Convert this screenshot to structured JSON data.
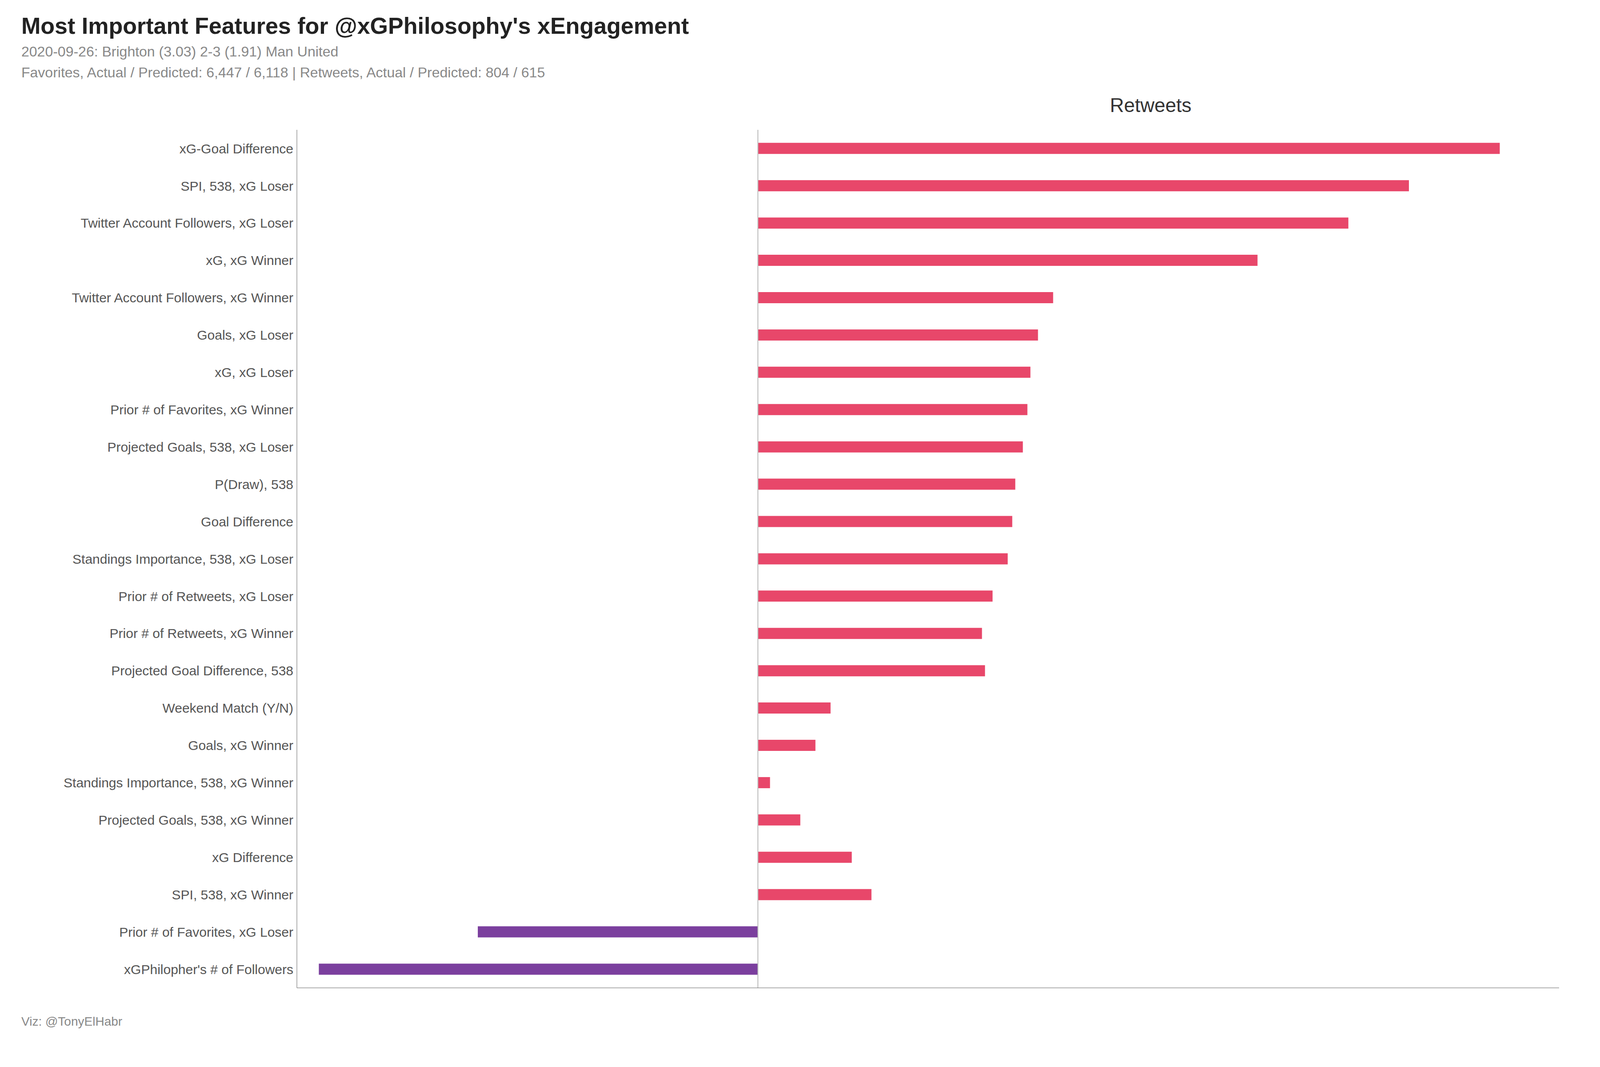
{
  "chart_data": {
    "type": "bar",
    "orientation": "horizontal",
    "title": "Most Important Features for @xGPhilosophy's xEngagement",
    "subtitle": [
      "2020-09-26: Brighton (3.03) 2-3 (1.91) Man United",
      "Favorites, Actual / Predicted: 6,447 / 6,118 | Retweets, Actual / Predicted: 804 / 615"
    ],
    "annotations": [
      "Retweets",
      "Viz: @TonyElHabr"
    ],
    "categories": [
      "xG-Goal Difference",
      "SPI, 538, xG Loser",
      "Twitter Account Followers, xG Loser",
      "xG, xG Winner",
      "Twitter Account Followers, xG Winner",
      "Goals, xG Loser",
      "xG, xG Loser",
      "Prior # of Favorites, xG Winner",
      "Projected Goals, 538, xG Loser",
      "P(Draw), 538",
      "Goal Difference",
      "Standings Importance, 538, xG Loser",
      "Prior # of Retweets, xG Loser",
      "Prior # of Retweets, xG Winner",
      "Projected Goal Difference, 538",
      "Weekend Match (Y/N)",
      "Goals, xG Winner",
      "Standings Importance, 538, xG Winner",
      "Projected Goals, 538, xG Winner",
      "xG Difference",
      "SPI, 538, xG Winner",
      "Prior # of Favorites, xG Loser",
      "xGPhilopher's # of Followers"
    ],
    "values": [
      490,
      430,
      390,
      330,
      195,
      185,
      180,
      178,
      175,
      170,
      168,
      165,
      155,
      148,
      150,
      48,
      38,
      8,
      28,
      62,
      75,
      -185,
      -290
    ],
    "colors": [
      "#E8476A",
      "#E8476A",
      "#E8476A",
      "#E8476A",
      "#E8476A",
      "#E8476A",
      "#E8476A",
      "#E8476A",
      "#E8476A",
      "#E8476A",
      "#E8476A",
      "#E8476A",
      "#E8476A",
      "#E8476A",
      "#E8476A",
      "#E8476A",
      "#E8476A",
      "#E8476A",
      "#E8476A",
      "#E8476A",
      "#E8476A",
      "#7B3F9E",
      "#7B3F9E"
    ],
    "xlim": [
      -304.5,
      529.2
    ],
    "xticks": [],
    "grid": false,
    "tick_labels": "y"
  }
}
